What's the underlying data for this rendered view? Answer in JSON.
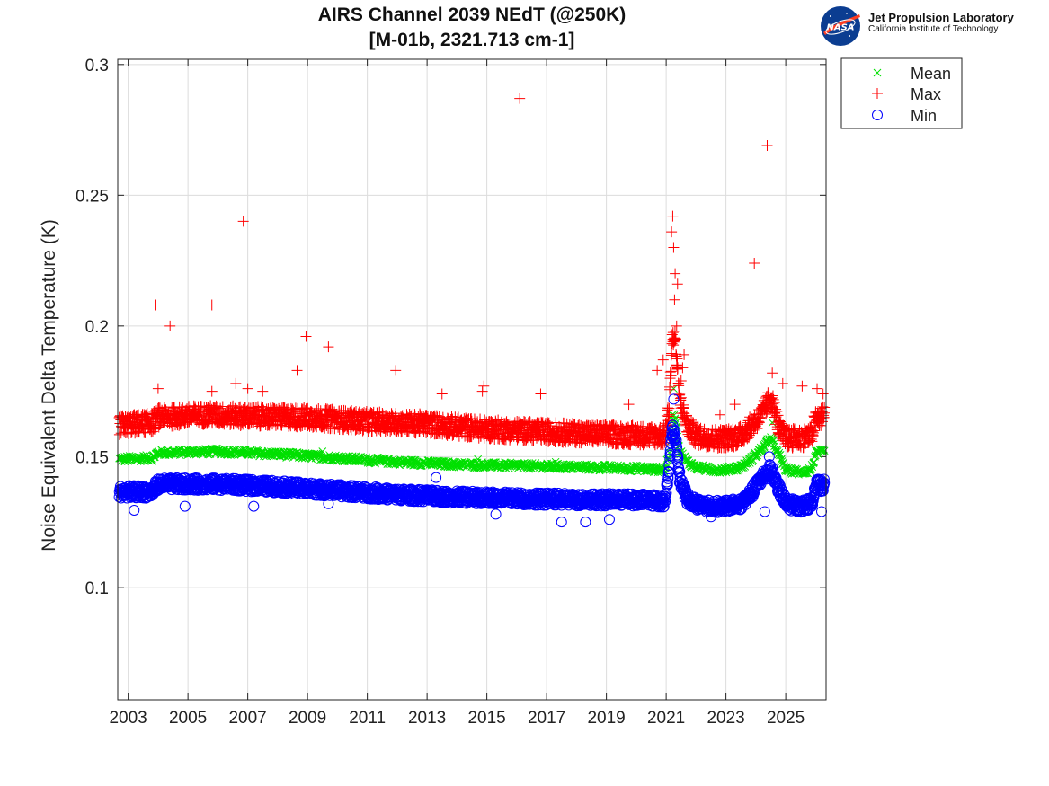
{
  "logo": {
    "org_name": "Jet Propulsion Laboratory",
    "org_sub": "California Institute of Technology",
    "badge_text": "NASA"
  },
  "chart_data": {
    "type": "scatter",
    "title": "AIRS Channel 2039 NEdT (@250K)",
    "subtitle": "[M-01b, 2321.713 cm-1]",
    "xlabel": "",
    "ylabel": "Noise Equivalent Delta Temperature (K)",
    "xlim": [
      2002.65,
      2026.35
    ],
    "ylim": [
      0.057,
      0.302
    ],
    "xticks": [
      "2003",
      "2005",
      "2007",
      "2009",
      "2011",
      "2013",
      "2015",
      "2017",
      "2019",
      "2021",
      "2023",
      "2025"
    ],
    "yticks": [
      "0.1",
      "0.15",
      "0.2",
      "0.25",
      "0.3"
    ],
    "grid": true,
    "legend_position": "outside-top-right",
    "series": [
      {
        "name": "Mean",
        "marker": "x",
        "color": "#00e000",
        "trend": [
          [
            2002.7,
            0.149
          ],
          [
            2003.8,
            0.1495
          ],
          [
            2004.0,
            0.1515
          ],
          [
            2006.0,
            0.152
          ],
          [
            2008.0,
            0.151
          ],
          [
            2010.0,
            0.1495
          ],
          [
            2012.0,
            0.148
          ],
          [
            2014.0,
            0.147
          ],
          [
            2016.0,
            0.1465
          ],
          [
            2018.0,
            0.146
          ],
          [
            2020.0,
            0.1455
          ],
          [
            2020.95,
            0.145
          ],
          [
            2021.1,
            0.15
          ],
          [
            2021.2,
            0.165
          ],
          [
            2021.3,
            0.165
          ],
          [
            2021.45,
            0.152
          ],
          [
            2021.7,
            0.148
          ],
          [
            2022.0,
            0.146
          ],
          [
            2022.5,
            0.145
          ],
          [
            2023.0,
            0.145
          ],
          [
            2023.5,
            0.146
          ],
          [
            2023.85,
            0.149
          ],
          [
            2024.2,
            0.153
          ],
          [
            2024.5,
            0.157
          ],
          [
            2024.8,
            0.15
          ],
          [
            2025.0,
            0.145
          ],
          [
            2025.5,
            0.144
          ],
          [
            2025.85,
            0.145
          ],
          [
            2026.0,
            0.151
          ],
          [
            2026.3,
            0.152
          ]
        ],
        "spread": 0.0012,
        "outliers": [
          [
            2009.5,
            0.152
          ],
          [
            2014.7,
            0.149
          ],
          [
            2017.3,
            0.148
          ],
          [
            2018.9,
            0.147
          ],
          [
            2021.25,
            0.176
          ],
          [
            2024.55,
            0.163
          ]
        ]
      },
      {
        "name": "Max",
        "marker": "+",
        "color": "#ff0000",
        "trend": [
          [
            2002.7,
            0.162
          ],
          [
            2003.8,
            0.163
          ],
          [
            2004.0,
            0.165
          ],
          [
            2005.5,
            0.166
          ],
          [
            2007.0,
            0.1655
          ],
          [
            2009.0,
            0.165
          ],
          [
            2011.0,
            0.1635
          ],
          [
            2013.0,
            0.1625
          ],
          [
            2015.0,
            0.1605
          ],
          [
            2017.0,
            0.1595
          ],
          [
            2019.0,
            0.1585
          ],
          [
            2020.95,
            0.158
          ],
          [
            2021.1,
            0.168
          ],
          [
            2021.2,
            0.195
          ],
          [
            2021.3,
            0.195
          ],
          [
            2021.45,
            0.172
          ],
          [
            2021.7,
            0.162
          ],
          [
            2022.0,
            0.158
          ],
          [
            2022.5,
            0.157
          ],
          [
            2023.0,
            0.157
          ],
          [
            2023.5,
            0.158
          ],
          [
            2023.85,
            0.162
          ],
          [
            2024.2,
            0.166
          ],
          [
            2024.5,
            0.173
          ],
          [
            2024.8,
            0.16
          ],
          [
            2025.0,
            0.157
          ],
          [
            2025.5,
            0.157
          ],
          [
            2025.85,
            0.158
          ],
          [
            2026.0,
            0.164
          ],
          [
            2026.3,
            0.166
          ]
        ],
        "spread": 0.0038,
        "outliers": [
          [
            2003.9,
            0.208
          ],
          [
            2004.4,
            0.2
          ],
          [
            2004.0,
            0.176
          ],
          [
            2005.8,
            0.208
          ],
          [
            2005.8,
            0.175
          ],
          [
            2006.6,
            0.178
          ],
          [
            2006.85,
            0.24
          ],
          [
            2007.0,
            0.176
          ],
          [
            2007.5,
            0.175
          ],
          [
            2008.65,
            0.183
          ],
          [
            2008.95,
            0.196
          ],
          [
            2009.7,
            0.192
          ],
          [
            2011.95,
            0.183
          ],
          [
            2013.5,
            0.174
          ],
          [
            2014.9,
            0.177
          ],
          [
            2014.85,
            0.175
          ],
          [
            2016.1,
            0.287
          ],
          [
            2016.8,
            0.174
          ],
          [
            2019.75,
            0.17
          ],
          [
            2020.7,
            0.183
          ],
          [
            2020.9,
            0.187
          ],
          [
            2021.18,
            0.236
          ],
          [
            2021.22,
            0.242
          ],
          [
            2021.25,
            0.23
          ],
          [
            2021.3,
            0.22
          ],
          [
            2021.38,
            0.216
          ],
          [
            2021.28,
            0.21
          ],
          [
            2021.35,
            0.2
          ],
          [
            2021.6,
            0.189
          ],
          [
            2021.55,
            0.184
          ],
          [
            2021.5,
            0.179
          ],
          [
            2022.8,
            0.166
          ],
          [
            2023.3,
            0.17
          ],
          [
            2023.95,
            0.224
          ],
          [
            2024.38,
            0.269
          ],
          [
            2024.55,
            0.182
          ],
          [
            2024.9,
            0.178
          ],
          [
            2025.55,
            0.177
          ],
          [
            2026.05,
            0.176
          ],
          [
            2026.25,
            0.174
          ]
        ]
      },
      {
        "name": "Min",
        "marker": "o",
        "color": "#0000ff",
        "trend": [
          [
            2002.7,
            0.1365
          ],
          [
            2003.8,
            0.1365
          ],
          [
            2004.0,
            0.1395
          ],
          [
            2006.0,
            0.1395
          ],
          [
            2008.0,
            0.1385
          ],
          [
            2010.0,
            0.137
          ],
          [
            2012.0,
            0.1355
          ],
          [
            2014.0,
            0.1345
          ],
          [
            2016.0,
            0.134
          ],
          [
            2018.0,
            0.1335
          ],
          [
            2020.0,
            0.1335
          ],
          [
            2020.95,
            0.133
          ],
          [
            2021.1,
            0.146
          ],
          [
            2021.2,
            0.16
          ],
          [
            2021.3,
            0.158
          ],
          [
            2021.45,
            0.142
          ],
          [
            2021.7,
            0.134
          ],
          [
            2022.0,
            0.132
          ],
          [
            2022.5,
            0.131
          ],
          [
            2023.0,
            0.131
          ],
          [
            2023.5,
            0.132
          ],
          [
            2023.85,
            0.136
          ],
          [
            2024.2,
            0.142
          ],
          [
            2024.5,
            0.145
          ],
          [
            2024.8,
            0.137
          ],
          [
            2025.0,
            0.132
          ],
          [
            2025.5,
            0.131
          ],
          [
            2025.85,
            0.132
          ],
          [
            2026.0,
            0.139
          ],
          [
            2026.3,
            0.139
          ]
        ],
        "spread": 0.0024,
        "outliers": [
          [
            2003.2,
            0.1295
          ],
          [
            2004.9,
            0.131
          ],
          [
            2007.2,
            0.131
          ],
          [
            2009.7,
            0.132
          ],
          [
            2013.3,
            0.142
          ],
          [
            2015.3,
            0.128
          ],
          [
            2017.5,
            0.125
          ],
          [
            2018.3,
            0.125
          ],
          [
            2019.1,
            0.126
          ],
          [
            2021.25,
            0.172
          ],
          [
            2021.22,
            0.162
          ],
          [
            2022.5,
            0.127
          ],
          [
            2024.45,
            0.15
          ],
          [
            2024.3,
            0.129
          ],
          [
            2026.2,
            0.129
          ]
        ]
      }
    ]
  }
}
